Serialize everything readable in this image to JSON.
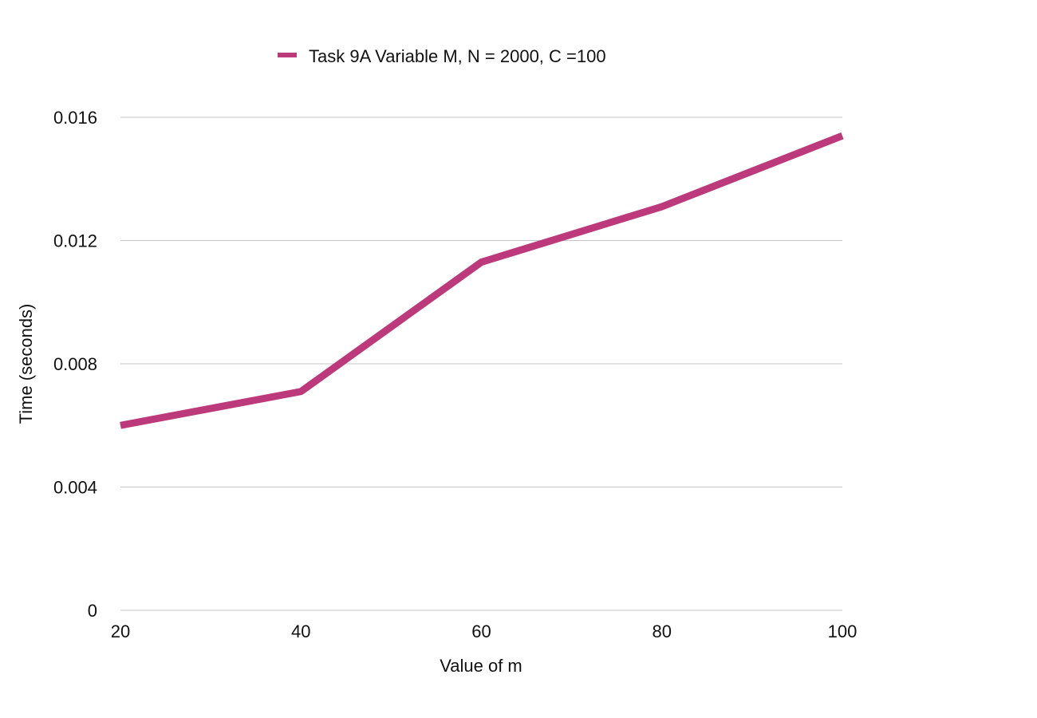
{
  "chart_data": {
    "type": "line",
    "title": "",
    "xlabel": "Value of m",
    "ylabel": "Time (seconds)",
    "x": [
      20,
      40,
      60,
      80,
      100
    ],
    "xticks": [
      "20",
      "40",
      "60",
      "80",
      "100"
    ],
    "yticks": [
      "0",
      "0.004",
      "0.008",
      "0.012",
      "0.016"
    ],
    "ytick_values": [
      0,
      0.004,
      0.008,
      0.012,
      0.016
    ],
    "xlim": [
      20,
      100
    ],
    "ylim": [
      0,
      0.016
    ],
    "grid": true,
    "legend_position": "top-center",
    "series": [
      {
        "name": "Task 9A Variable M, N = 2000, C =100",
        "color": "#bc3a7b",
        "values": [
          0.006,
          0.0071,
          0.0113,
          0.0131,
          0.0154
        ]
      }
    ]
  }
}
